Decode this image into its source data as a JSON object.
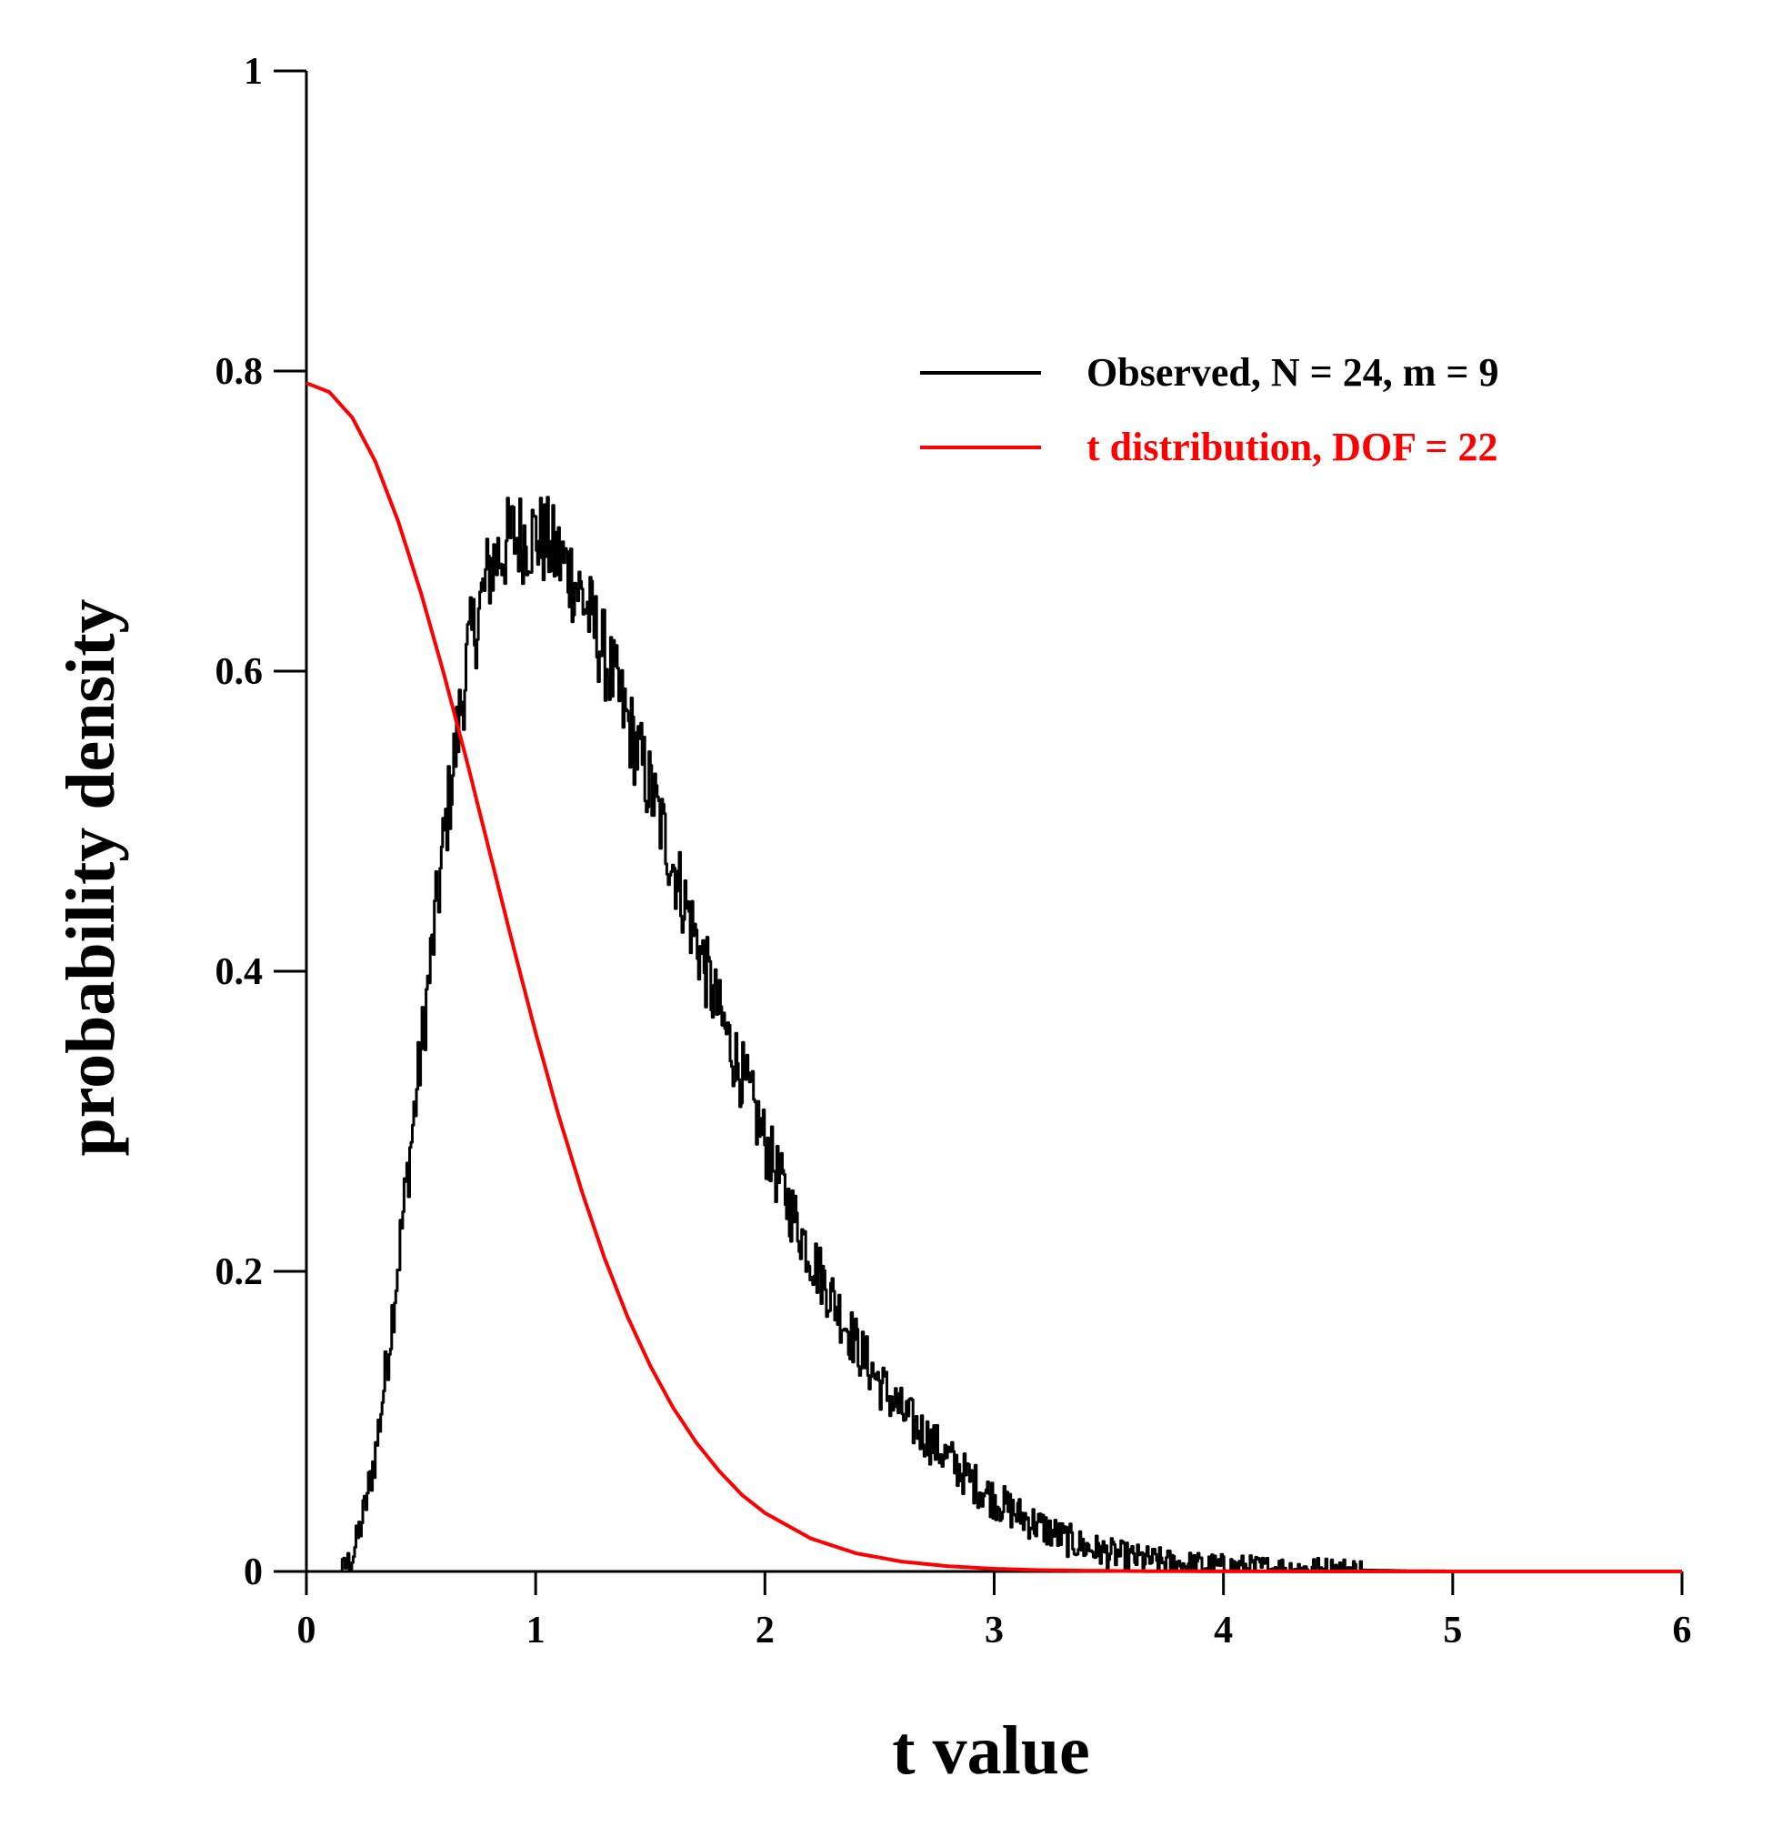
{
  "chart_data": {
    "type": "line",
    "xlabel": "t value",
    "ylabel": "probability density",
    "xlim": [
      0,
      6
    ],
    "ylim": [
      0,
      1
    ],
    "x_ticks": [
      "0",
      "1",
      "2",
      "3",
      "4",
      "5",
      "6"
    ],
    "y_ticks": [
      "0",
      "0.2",
      "0.4",
      "0.6",
      "0.8",
      "1"
    ],
    "grid": false,
    "legend_position": "top-right",
    "series": [
      {
        "name": "Observed, N = 24, m = 9",
        "color": "#000000",
        "style": "noisy-histogram-line",
        "x": [
          0,
          0.15,
          0.2,
          0.25,
          0.3,
          0.35,
          0.4,
          0.45,
          0.5,
          0.55,
          0.6,
          0.65,
          0.7,
          0.75,
          0.8,
          0.85,
          0.9,
          0.95,
          1.0,
          1.05,
          1.1,
          1.15,
          1.2,
          1.3,
          1.4,
          1.5,
          1.6,
          1.7,
          1.8,
          1.9,
          2.0,
          2.1,
          2.2,
          2.3,
          2.4,
          2.5,
          2.6,
          2.7,
          2.8,
          2.9,
          3.0,
          3.1,
          3.2,
          3.3,
          3.4,
          3.5,
          3.6,
          3.7,
          3.8,
          3.9,
          4.0,
          4.2,
          4.4,
          4.6,
          4.8,
          5.0,
          5.5,
          6.0
        ],
        "y": [
          0,
          0,
          0.01,
          0.04,
          0.08,
          0.14,
          0.21,
          0.28,
          0.35,
          0.42,
          0.49,
          0.55,
          0.61,
          0.64,
          0.67,
          0.68,
          0.69,
          0.69,
          0.69,
          0.685,
          0.675,
          0.665,
          0.65,
          0.61,
          0.565,
          0.52,
          0.47,
          0.42,
          0.37,
          0.33,
          0.285,
          0.245,
          0.21,
          0.18,
          0.15,
          0.125,
          0.105,
          0.09,
          0.075,
          0.06,
          0.048,
          0.038,
          0.03,
          0.022,
          0.016,
          0.012,
          0.009,
          0.007,
          0.005,
          0.004,
          0.003,
          0.002,
          0.0015,
          0.001,
          0.0005,
          0.0003,
          0.0001,
          0
        ]
      },
      {
        "name": "t distribution, DOF = 22",
        "color": "#ff0000",
        "x": [
          0,
          0.1,
          0.2,
          0.3,
          0.4,
          0.5,
          0.6,
          0.7,
          0.8,
          0.9,
          1.0,
          1.1,
          1.2,
          1.3,
          1.4,
          1.5,
          1.6,
          1.7,
          1.8,
          1.9,
          2.0,
          2.2,
          2.4,
          2.6,
          2.8,
          3.0,
          3.2,
          3.4,
          3.6,
          3.8,
          4.0,
          4.5,
          5.0,
          5.5,
          6.0
        ],
        "y": [
          0.792,
          0.786,
          0.769,
          0.74,
          0.7,
          0.652,
          0.598,
          0.54,
          0.479,
          0.418,
          0.359,
          0.304,
          0.254,
          0.209,
          0.17,
          0.137,
          0.109,
          0.086,
          0.067,
          0.051,
          0.039,
          0.022,
          0.012,
          0.0065,
          0.0035,
          0.0018,
          0.0009,
          0.0005,
          0.00025,
          0.00012,
          6e-05,
          1e-05,
          0,
          0,
          0
        ]
      }
    ]
  }
}
